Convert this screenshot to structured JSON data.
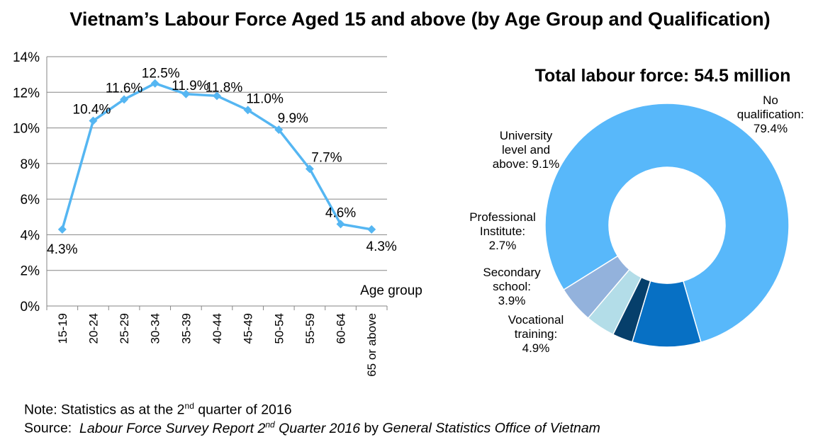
{
  "title": "Vietnam’s Labour Force Aged 15 and above (by Age Group and Qualification)",
  "chart_data": [
    {
      "type": "line",
      "title": "",
      "xlabel": "Age group",
      "ylabel": "",
      "categories": [
        "15-19",
        "20-24",
        "25-29",
        "30-34",
        "35-39",
        "40-44",
        "45-49",
        "50-54",
        "55-59",
        "60-64",
        "65 or above"
      ],
      "series": [
        {
          "values": [
            4.3,
            10.4,
            11.6,
            12.5,
            11.9,
            11.8,
            11.0,
            9.9,
            7.7,
            4.6,
            4.3
          ],
          "labels": [
            "4.3%",
            "10.4%",
            "11.6%",
            "12.5%",
            "11.9%",
            "11.8%",
            "11.0%",
            "9.9%",
            "7.7%",
            "4.6%",
            "4.3%"
          ],
          "color": "#55b6f2"
        }
      ],
      "ylim": [
        0,
        14
      ],
      "yticks": [
        "0%",
        "2%",
        "4%",
        "6%",
        "8%",
        "10%",
        "12%",
        "14%"
      ],
      "grid": true,
      "legend": "none"
    },
    {
      "type": "pie",
      "title": "Total labour force: 54.5 million",
      "slices": [
        {
          "label_lines": [
            "No",
            "qualification:",
            "79.4%"
          ],
          "value": 79.4,
          "color": "#58b8fa"
        },
        {
          "label_lines": [
            "University",
            "level and",
            "above: 9.1%"
          ],
          "value": 9.1,
          "color": "#0770c4"
        },
        {
          "label_lines": [
            "Professional",
            "Institute:",
            "2.7%"
          ],
          "value": 2.7,
          "color": "#063f6b"
        },
        {
          "label_lines": [
            "Secondary",
            "school:",
            "3.9%"
          ],
          "value": 3.9,
          "color": "#b3dde8"
        },
        {
          "label_lines": [
            "Vocational",
            "training:",
            "4.9%"
          ],
          "value": 4.9,
          "color": "#93b2dc"
        }
      ],
      "donut": true
    }
  ],
  "note": {
    "prefix": "Note: Statistics as at the 2",
    "sup": "nd",
    "suffix": " quarter of 2016"
  },
  "source": {
    "prefix": "Source:  ",
    "report_a": "Labour Force Survey Report 2",
    "report_sup": "nd",
    "report_b": " Quarter 2016",
    "by": " by ",
    "org": "General Statistics Office of Vietnam"
  }
}
